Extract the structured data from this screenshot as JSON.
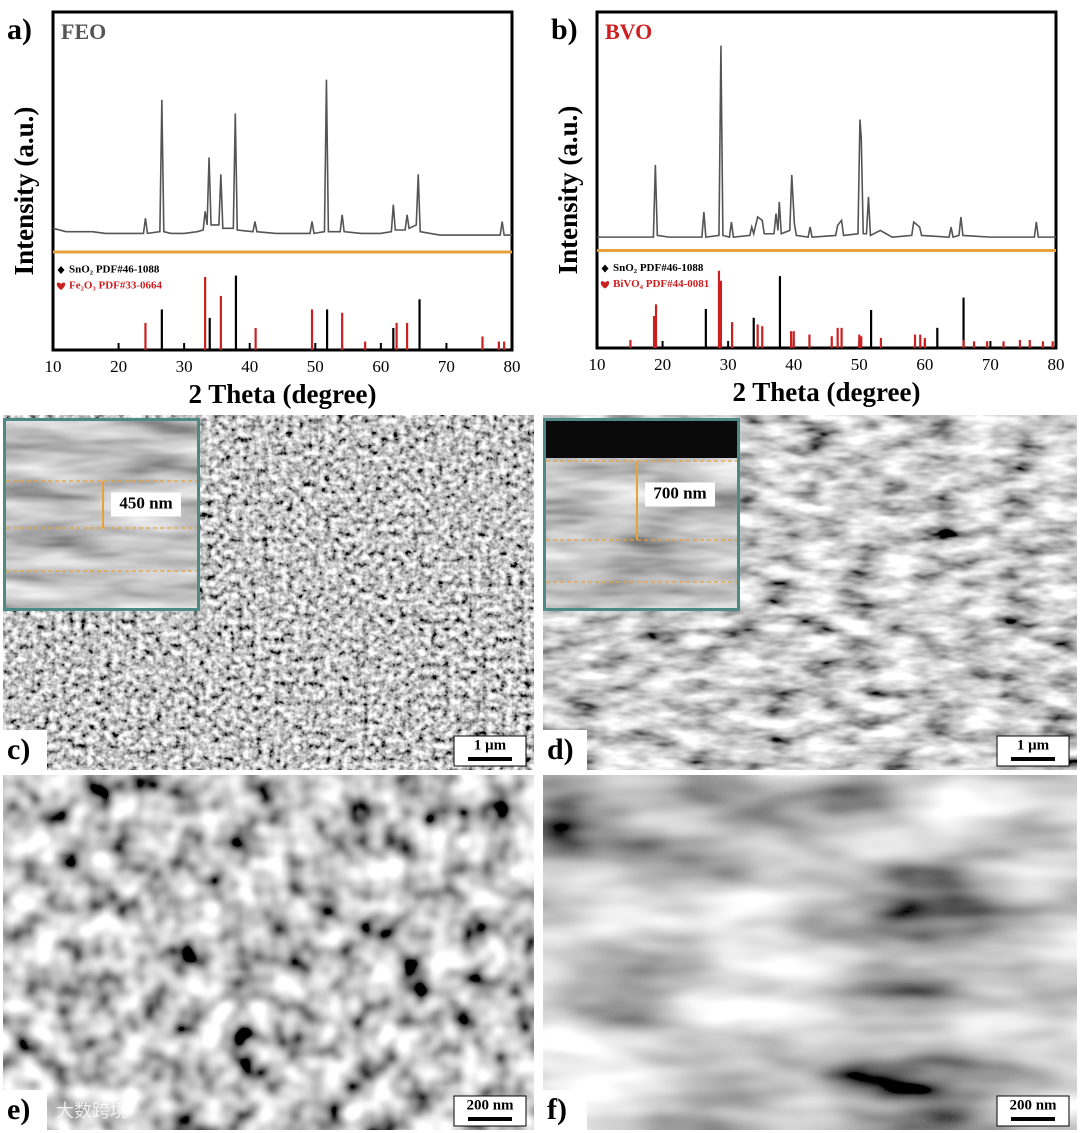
{
  "chart_data": [
    {
      "type": "line",
      "panel_label": "a)",
      "title": "FEO",
      "title_color": "#555555",
      "x_label": "2 Theta (degree)",
      "y_label": "Intensity (a.u.)",
      "xlim": [
        10,
        80
      ],
      "ylim": [
        0,
        100
      ],
      "xticks": [
        10,
        20,
        30,
        40,
        50,
        60,
        70,
        80
      ],
      "series": [
        {
          "color": "#555555",
          "x": [
            10,
            12,
            14,
            16,
            18,
            20,
            22,
            23.8,
            24.1,
            24.4,
            26.3,
            26.6,
            26.9,
            28,
            30,
            32,
            32.9,
            33.2,
            33.5,
            33.8,
            34.1,
            35.3,
            35.6,
            35.9,
            37.5,
            37.8,
            38.1,
            40.5,
            40.8,
            41.1,
            44,
            47,
            49.2,
            49.5,
            49.8,
            51.4,
            51.7,
            52,
            53.8,
            54.1,
            54.4,
            57,
            60,
            61.6,
            61.9,
            62.2,
            63.7,
            64,
            64.3,
            65.4,
            65.7,
            66,
            69,
            72,
            75,
            78.2,
            78.5,
            78.8,
            80
          ],
          "values": [
            36,
            35,
            35,
            35,
            34.5,
            34.5,
            34.5,
            34.5,
            39,
            34.5,
            35,
            74,
            35,
            34.5,
            34.5,
            35,
            35.5,
            41,
            37,
            57,
            37,
            37,
            52,
            36,
            36,
            70,
            35.5,
            35,
            38,
            35,
            34.5,
            34.5,
            34.5,
            38,
            34.5,
            35,
            80,
            35,
            35,
            40,
            35,
            34.5,
            34.5,
            35,
            43,
            35.5,
            35.5,
            40,
            36,
            37,
            52,
            35,
            34,
            34,
            34,
            34,
            38,
            34,
            34
          ]
        },
        {
          "name": "SnO₂  PDF#46-1088",
          "color": "#000000",
          "marker": "diamond",
          "style": "stick",
          "x": [
            26.6,
            33.9,
            37.9,
            51.8,
            61.9,
            65.9
          ],
          "values": [
            12,
            9.5,
            22,
            12,
            6.5,
            15
          ]
        },
        {
          "name": "Fe₂O₃  PDF#33-0664",
          "color": "#cc1f1f",
          "marker": "heart",
          "style": "stick",
          "x": [
            24.1,
            33.2,
            35.6,
            40.9,
            49.5,
            54.1,
            57.6,
            62.4,
            64,
            75.5,
            78,
            78.8
          ],
          "values": [
            8,
            21.6,
            16,
            6.5,
            12,
            11,
            2.5,
            8,
            8,
            4,
            2.5,
            2.5
          ]
        }
      ]
    },
    {
      "type": "line",
      "panel_label": "b)",
      "title": "BVO",
      "title_color": "#cc1f1f",
      "x_label": "2 Theta (degree)",
      "y_label": "Intensity (a.u.)",
      "xlim": [
        10,
        80
      ],
      "ylim": [
        0,
        100
      ],
      "xticks": [
        10,
        20,
        30,
        40,
        50,
        60,
        70,
        80
      ],
      "series": [
        {
          "color": "#555555",
          "x": [
            10,
            12,
            14,
            16,
            18.6,
            18.9,
            19.2,
            21,
            24,
            26,
            26.3,
            26.6,
            28.6,
            28.9,
            29.2,
            30.2,
            30.5,
            30.8,
            33.3,
            33.6,
            33.9,
            34.5,
            35.2,
            35.5,
            37,
            37.3,
            37.6,
            37.8,
            38.1,
            39.4,
            39.7,
            40.1,
            40.4,
            42.2,
            42.5,
            42.8,
            46.4,
            46.7,
            47.3,
            47.6,
            49.8,
            50.1,
            50.3,
            50.6,
            51.1,
            51.4,
            51.7,
            53.2,
            55,
            58,
            58.3,
            59.2,
            59.5,
            63.7,
            64,
            64.3,
            65.2,
            65.5,
            65.8,
            70,
            74,
            76.7,
            77,
            77.3,
            80
          ],
          "values": [
            33,
            33,
            33,
            33,
            33,
            54.5,
            33.5,
            33,
            33,
            33,
            40.5,
            33,
            33.5,
            90,
            33.5,
            33,
            37.5,
            33,
            33.5,
            36,
            34,
            39,
            38,
            34,
            34,
            40,
            35,
            43.5,
            34,
            35,
            51.5,
            37,
            33.5,
            33,
            36,
            33,
            33.5,
            36.5,
            38,
            33.5,
            34,
            68,
            62.5,
            34,
            34,
            45,
            33.5,
            35,
            33,
            33.5,
            37.5,
            36,
            33.5,
            33,
            36,
            33,
            33.5,
            39,
            33.5,
            33,
            33,
            33,
            37.5,
            33,
            33
          ]
        },
        {
          "name": "SnO₂  PDF#46-1088",
          "color": "#000000",
          "marker": "diamond",
          "style": "stick",
          "x": [
            26.6,
            33.9,
            37.9,
            51.8,
            61.9,
            65.9
          ],
          "values": [
            11.6,
            9,
            21.4,
            11.3,
            6,
            15
          ]
        },
        {
          "name": "BiVO₄  PDF#44-0081",
          "color": "#cc1f1f",
          "marker": "heart",
          "style": "stick",
          "x": [
            15.1,
            18.7,
            19,
            28.6,
            28.9,
            30.6,
            34.5,
            35.2,
            39.6,
            40,
            42.4,
            45.8,
            46.7,
            47.3,
            50,
            50.3,
            53.3,
            58.5,
            59.3,
            60,
            65.9,
            67.5,
            69.5,
            72,
            74.5,
            76,
            78,
            79.5
          ],
          "values": [
            2.4,
            9.5,
            13,
            23,
            20,
            7.7,
            7,
            6.5,
            5,
            5,
            4,
            3.5,
            6,
            6,
            4,
            3.5,
            3,
            4,
            4,
            3,
            2.4,
            2,
            2,
            2,
            2.4,
            2.4,
            2,
            2
          ]
        }
      ]
    }
  ],
  "images": [
    {
      "label": "c)",
      "scale_bar": "1 μm",
      "inset_label": "450 nm"
    },
    {
      "label": "d)",
      "scale_bar": "1 μm",
      "inset_label": "700 nm"
    },
    {
      "label": "e)",
      "scale_bar": "200 nm"
    },
    {
      "label": "f)",
      "scale_bar": "200 nm"
    }
  ],
  "watermark": "大数跨境"
}
